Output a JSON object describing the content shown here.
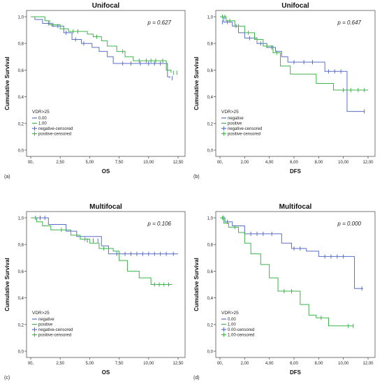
{
  "figure": {
    "y_axis_label": "Cumulative Survival",
    "legend_title": "VDR>25"
  },
  "chart_data": [
    {
      "type": "line",
      "panel_label": "(a)",
      "title": "Unifocal",
      "xlabel": "OS",
      "ylabel": "Cumulative Survival",
      "p_value": "p = 0.627",
      "xlim": [
        0,
        12.5
      ],
      "ylim": [
        0,
        1.0
      ],
      "x_ticks": [
        "00,",
        "2,50",
        "5,00",
        "7,50",
        "10,00",
        "12,50"
      ],
      "y_ticks": [
        "0,0",
        "0,2",
        "0,4",
        "0,6",
        "0,8",
        "1,0"
      ],
      "legend_title": "VDR>25",
      "legend": [
        "0.00",
        "1.00",
        "negative-censored",
        "positive-censored"
      ],
      "series": [
        {
          "name": "0.00",
          "color": "#5a6fc8",
          "x": [
            0,
            0.35,
            1.0,
            1.8,
            2.8,
            3.5,
            4.3,
            5.2,
            5.8,
            6.5,
            7.0,
            11.6,
            11.8
          ],
          "y": [
            1.0,
            0.98,
            0.95,
            0.93,
            0.88,
            0.83,
            0.8,
            0.77,
            0.74,
            0.7,
            0.65,
            0.55,
            0.54
          ],
          "censored": [
            [
              1.5,
              0.95
            ],
            [
              2.3,
              0.93
            ],
            [
              3.0,
              0.88
            ],
            [
              3.8,
              0.83
            ],
            [
              4.5,
              0.8
            ],
            [
              7.8,
              0.65
            ],
            [
              8.5,
              0.65
            ],
            [
              9.3,
              0.65
            ],
            [
              10.0,
              0.65
            ],
            [
              10.5,
              0.65
            ],
            [
              11.0,
              0.65
            ],
            [
              12.0,
              0.54
            ]
          ]
        },
        {
          "name": "1.00",
          "color": "#3cb44a",
          "x": [
            0,
            1.2,
            1.6,
            2.5,
            3.2,
            4.8,
            5.3,
            6.0,
            6.5,
            7.3,
            8.0,
            8.7,
            11.5,
            11.9
          ],
          "y": [
            1.0,
            0.97,
            0.94,
            0.91,
            0.89,
            0.87,
            0.85,
            0.82,
            0.78,
            0.74,
            0.7,
            0.67,
            0.6,
            0.58
          ],
          "censored": [
            [
              1.9,
              0.94
            ],
            [
              3.6,
              0.89
            ],
            [
              4.0,
              0.89
            ],
            [
              5.6,
              0.85
            ],
            [
              7.8,
              0.74
            ],
            [
              9.2,
              0.67
            ],
            [
              9.8,
              0.67
            ],
            [
              10.2,
              0.67
            ],
            [
              10.6,
              0.67
            ],
            [
              11.2,
              0.67
            ],
            [
              12.1,
              0.58
            ],
            [
              12.4,
              0.58
            ]
          ]
        }
      ]
    },
    {
      "type": "line",
      "panel_label": "(b)",
      "title": "Unifocal",
      "xlabel": "DFS",
      "ylabel": "Cumulative Survival",
      "p_value": "p = 0.647",
      "xlim": [
        0,
        12
      ],
      "ylim": [
        0,
        1.0
      ],
      "x_ticks": [
        "00,",
        "2,00",
        "4,00",
        "6,00",
        "8,00",
        "10,00",
        "12,00"
      ],
      "y_ticks": [
        "0,0",
        "0,2",
        "0,4",
        "0,6",
        "0,8",
        "1,0"
      ],
      "legend_title": "VDR>25",
      "legend": [
        "negative",
        "positive",
        "negative-censored",
        "positive-censored"
      ],
      "series": [
        {
          "name": "negative",
          "color": "#5a6fc8",
          "x": [
            0,
            0.3,
            1.0,
            1.5,
            2.0,
            3.0,
            3.8,
            4.5,
            5.0,
            5.5,
            8.5,
            10.3,
            11.7
          ],
          "y": [
            1.0,
            0.96,
            0.93,
            0.88,
            0.84,
            0.8,
            0.77,
            0.74,
            0.7,
            0.66,
            0.59,
            0.29,
            0.29
          ],
          "censored": [
            [
              0.2,
              0.96
            ],
            [
              0.6,
              0.96
            ],
            [
              1.3,
              0.93
            ],
            [
              2.4,
              0.84
            ],
            [
              3.3,
              0.8
            ],
            [
              4.2,
              0.77
            ],
            [
              6.0,
              0.66
            ],
            [
              6.8,
              0.66
            ],
            [
              7.5,
              0.66
            ],
            [
              8.8,
              0.59
            ],
            [
              9.3,
              0.59
            ],
            [
              9.8,
              0.59
            ],
            [
              11.7,
              0.29
            ]
          ]
        },
        {
          "name": "positive",
          "color": "#3cb44a",
          "x": [
            0,
            0.5,
            1.2,
            2.0,
            2.8,
            3.5,
            4.3,
            4.9,
            5.7,
            7.8,
            9.2,
            12.0
          ],
          "y": [
            1.0,
            0.97,
            0.93,
            0.88,
            0.83,
            0.78,
            0.73,
            0.63,
            0.57,
            0.5,
            0.45,
            0.45
          ],
          "censored": [
            [
              0.2,
              1.0
            ],
            [
              0.4,
              1.0
            ],
            [
              0.8,
              0.97
            ],
            [
              1.5,
              0.93
            ],
            [
              2.3,
              0.88
            ],
            [
              3.0,
              0.83
            ],
            [
              3.8,
              0.78
            ],
            [
              4.6,
              0.73
            ],
            [
              10.0,
              0.45
            ],
            [
              10.6,
              0.45
            ],
            [
              11.2,
              0.45
            ],
            [
              11.7,
              0.45
            ]
          ]
        }
      ]
    },
    {
      "type": "line",
      "panel_label": "(c)",
      "title": "Multifocal",
      "xlabel": "OS",
      "ylabel": "Cumulative Survival",
      "p_value": "p = 0.106",
      "xlim": [
        0,
        12.5
      ],
      "ylim": [
        0,
        1.0
      ],
      "x_ticks": [
        "00,",
        "2,50",
        "5,00",
        "7,50",
        "10,00",
        "12,50"
      ],
      "y_ticks": [
        "0,0",
        "0,2",
        "0,4",
        "0,6",
        "0,8",
        "1,0"
      ],
      "legend_title": "VDR>25",
      "legend": [
        "negative",
        "positive",
        "negative-censored",
        "positive-censored"
      ],
      "series": [
        {
          "name": "negative",
          "color": "#5a6fc8",
          "x": [
            0,
            1.5,
            3.0,
            3.9,
            6.0,
            6.6,
            12.5
          ],
          "y": [
            1.0,
            0.95,
            0.9,
            0.86,
            0.79,
            0.73,
            0.73
          ],
          "censored": [
            [
              0.4,
              1.0
            ],
            [
              0.8,
              1.0
            ],
            [
              1.2,
              1.0
            ],
            [
              4.8,
              0.83
            ],
            [
              5.3,
              0.83
            ],
            [
              5.7,
              0.83
            ],
            [
              7.3,
              0.73
            ],
            [
              8.0,
              0.73
            ],
            [
              8.5,
              0.73
            ],
            [
              9.0,
              0.73
            ],
            [
              9.5,
              0.73
            ],
            [
              10.0,
              0.73
            ],
            [
              10.5,
              0.73
            ],
            [
              11.0,
              0.73
            ],
            [
              11.5,
              0.73
            ],
            [
              12.1,
              0.73
            ]
          ]
        },
        {
          "name": "positive",
          "color": "#3cb44a",
          "x": [
            0,
            0.5,
            1.0,
            1.7,
            3.4,
            4.2,
            5.0,
            5.8,
            7.0,
            7.5,
            8.2,
            9.2,
            10.2,
            12.0
          ],
          "y": [
            1.0,
            0.97,
            0.94,
            0.91,
            0.87,
            0.84,
            0.81,
            0.77,
            0.75,
            0.68,
            0.6,
            0.55,
            0.5,
            0.5
          ],
          "censored": [
            [
              2.6,
              0.91
            ],
            [
              4.6,
              0.84
            ],
            [
              6.2,
              0.77
            ],
            [
              10.5,
              0.5
            ],
            [
              10.9,
              0.5
            ],
            [
              11.3,
              0.5
            ],
            [
              11.7,
              0.5
            ]
          ]
        }
      ]
    },
    {
      "type": "line",
      "panel_label": "(d)",
      "title": "Multifocal",
      "xlabel": "DFS",
      "ylabel": "Cumulative Survival",
      "p_value": "p = 0.000",
      "xlim": [
        0,
        12
      ],
      "ylim": [
        0,
        1.0
      ],
      "x_ticks": [
        "00,",
        "2,00",
        "4,00",
        "6,00",
        "8,00",
        "10,00",
        "12,00"
      ],
      "y_ticks": [
        "0,0",
        "0,2",
        "0,4",
        "0,6",
        "0,8",
        "1,0"
      ],
      "legend_title": "VDR>25",
      "legend": [
        "0.00",
        "1.00",
        "0.00-censored",
        "1.00-censored"
      ],
      "series": [
        {
          "name": "0.00",
          "color": "#5a6fc8",
          "x": [
            0,
            0.4,
            1.0,
            2.0,
            5.0,
            5.8,
            7.0,
            8.0,
            10.9,
            11.6
          ],
          "y": [
            1.0,
            0.97,
            0.94,
            0.88,
            0.81,
            0.77,
            0.75,
            0.71,
            0.47,
            0.47
          ],
          "censored": [
            [
              0.3,
              1.0
            ],
            [
              0.6,
              0.97
            ],
            [
              2.5,
              0.88
            ],
            [
              3.0,
              0.88
            ],
            [
              3.5,
              0.88
            ],
            [
              4.2,
              0.88
            ],
            [
              6.0,
              0.77
            ],
            [
              6.5,
              0.77
            ],
            [
              8.5,
              0.71
            ],
            [
              9.0,
              0.71
            ],
            [
              9.5,
              0.71
            ],
            [
              10.0,
              0.71
            ],
            [
              11.5,
              0.47
            ]
          ]
        },
        {
          "name": "1.00",
          "color": "#3cb44a",
          "x": [
            0,
            0.3,
            0.7,
            1.5,
            2.0,
            2.5,
            3.3,
            4.0,
            4.7,
            6.5,
            7.2,
            7.8,
            8.8,
            10.8
          ],
          "y": [
            1.0,
            0.96,
            0.93,
            0.89,
            0.81,
            0.73,
            0.65,
            0.55,
            0.45,
            0.35,
            0.27,
            0.25,
            0.19,
            0.19
          ],
          "censored": [
            [
              0.2,
              1.0
            ],
            [
              1.2,
              0.93
            ],
            [
              5.2,
              0.45
            ],
            [
              5.8,
              0.45
            ],
            [
              8.2,
              0.25
            ],
            [
              10.4,
              0.19
            ],
            [
              10.8,
              0.19
            ]
          ]
        }
      ]
    }
  ]
}
